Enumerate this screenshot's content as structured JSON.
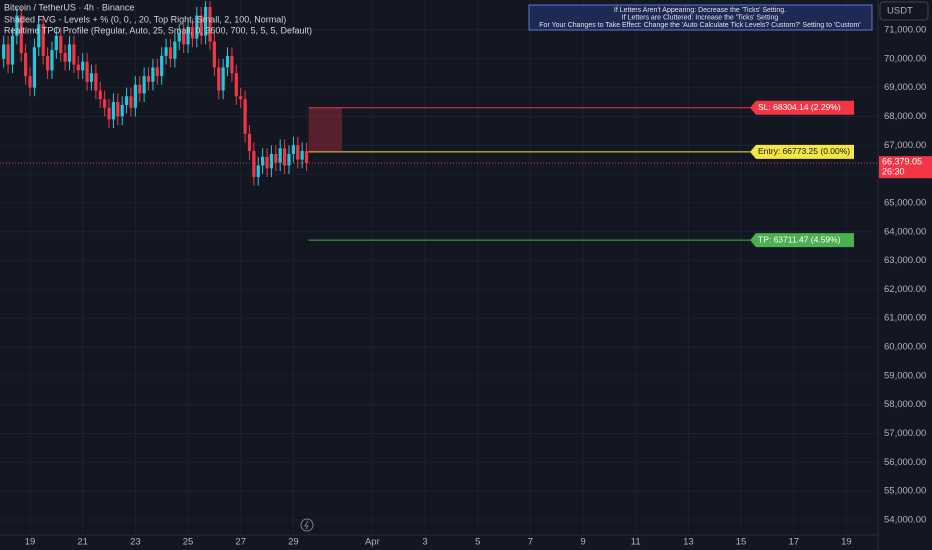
{
  "chart_data": {
    "type": "candlestick",
    "title": "Bitcoin / TetherUS · 4h · Binance",
    "indicators": [
      "Shaded FVG - Levels + % (0, 0, , 20, Top Right, Small, 2, 100, Normal)",
      "Realtime TPO Profile (Regular, Auto, 25, Small, 0, 3600, 700, 5, 5, 5, Default)"
    ],
    "currency": "USDT",
    "notice": [
      "If Letters Aren't Appearing: Decrease the 'Ticks' Setting.",
      "If Letters are Cluttered: Increase the 'Ticks' Setting",
      "For Your Changes to Take Effect: Change the 'Auto Calculate Tick Levels? Custom?' Setting to 'Custom'"
    ],
    "up_color": "#26c6da",
    "down_color": "#f23645",
    "x": [
      18,
      18.167,
      18.333,
      18.5,
      18.667,
      18.833,
      19,
      19.167,
      19.333,
      19.5,
      19.667,
      19.833,
      20,
      20.167,
      20.333,
      20.5,
      20.667,
      20.833,
      21,
      21.167,
      21.333,
      21.5,
      21.667,
      21.833,
      22,
      22.167,
      22.333,
      22.5,
      22.667,
      22.833,
      23,
      23.167,
      23.333,
      23.5,
      23.667,
      23.833,
      24,
      24.167,
      24.333,
      24.5,
      24.667,
      24.833,
      25,
      25.167,
      25.333,
      25.5,
      25.667,
      25.833,
      26,
      26.167,
      26.333,
      26.5,
      26.667,
      26.833,
      27,
      27.167,
      27.333,
      27.5,
      27.667,
      27.833,
      28,
      28.167,
      28.333,
      28.5,
      28.667,
      28.833,
      29,
      29.167,
      29.333,
      29.5
    ],
    "open": [
      70000,
      70500,
      69800,
      70800,
      71500,
      70200,
      69400,
      69000,
      70400,
      71200,
      70100,
      69600,
      70300,
      70800,
      70200,
      69900,
      70500,
      69800,
      69600,
      69900,
      69200,
      69500,
      68900,
      68600,
      68300,
      67900,
      68500,
      68000,
      68400,
      68700,
      68300,
      69100,
      68800,
      69400,
      69200,
      69700,
      69400,
      70100,
      70400,
      70000,
      70600,
      70900,
      70500,
      71100,
      70700,
      71500,
      70800,
      71800,
      70600,
      69700,
      68900,
      69700,
      70100,
      69500,
      68700,
      68600,
      67400,
      66800,
      65900,
      66300,
      66600,
      66200,
      66700,
      66400,
      66900,
      66300,
      66700,
      67000,
      66500,
      66800
    ],
    "high": [
      70800,
      70800,
      71100,
      71800,
      71800,
      70500,
      69700,
      70700,
      71500,
      71500,
      70400,
      70600,
      71100,
      71100,
      70500,
      70800,
      70800,
      70100,
      70200,
      70200,
      69800,
      69800,
      69200,
      68900,
      68600,
      68800,
      68800,
      68700,
      69000,
      69000,
      69400,
      69400,
      69700,
      69700,
      70000,
      70000,
      70400,
      70700,
      70700,
      70900,
      71200,
      71200,
      71400,
      71400,
      71800,
      71800,
      72000,
      72000,
      70900,
      70000,
      70000,
      70400,
      70400,
      69800,
      69000,
      68900,
      67700,
      67100,
      66600,
      66900,
      66900,
      67000,
      67000,
      67200,
      67200,
      67000,
      67300,
      67300,
      67100,
      67100
    ],
    "low": [
      69700,
      69500,
      69500,
      70500,
      69900,
      69100,
      68700,
      68700,
      70100,
      69800,
      69300,
      69300,
      70000,
      69900,
      69600,
      69600,
      69500,
      69300,
      69300,
      68900,
      68900,
      68600,
      68300,
      68000,
      67600,
      67600,
      67700,
      67700,
      68100,
      68000,
      68000,
      68500,
      68500,
      68900,
      68900,
      69100,
      69100,
      69800,
      69700,
      69700,
      70300,
      70200,
      70200,
      70400,
      70400,
      70500,
      70500,
      70300,
      69400,
      68600,
      68600,
      69400,
      69200,
      68400,
      68300,
      67100,
      66500,
      65600,
      65600,
      66000,
      65900,
      65900,
      66100,
      66100,
      66000,
      66000,
      66400,
      66200,
      66200,
      66100
    ],
    "close": [
      70500,
      69800,
      70800,
      71500,
      70200,
      69400,
      69000,
      70400,
      71200,
      70100,
      69600,
      70300,
      70800,
      70200,
      69900,
      70500,
      69800,
      69600,
      69900,
      69200,
      69500,
      68900,
      68600,
      68300,
      67900,
      68500,
      68000,
      68400,
      68700,
      68300,
      69100,
      68800,
      69400,
      69200,
      69700,
      69400,
      70100,
      70400,
      70000,
      70600,
      70900,
      70500,
      71100,
      70700,
      71500,
      70800,
      71800,
      70600,
      69700,
      68900,
      69700,
      70100,
      69500,
      68700,
      68600,
      67400,
      66800,
      65900,
      66300,
      66600,
      66200,
      66700,
      66400,
      66900,
      66300,
      66700,
      67000,
      66500,
      66800,
      66379
    ],
    "xlim": [
      17.86,
      51.2
    ],
    "xticks": [
      19,
      21,
      23,
      25,
      27,
      29,
      {
        "value": 32,
        "label": "Apr"
      },
      {
        "value": 34,
        "label": "3"
      },
      {
        "value": 36,
        "label": "5"
      },
      {
        "value": 38,
        "label": "7"
      },
      {
        "value": 40,
        "label": "9"
      },
      {
        "value": 42,
        "label": "11"
      },
      {
        "value": 44,
        "label": "13"
      },
      {
        "value": 46,
        "label": "15"
      },
      {
        "value": 48,
        "label": "17"
      },
      {
        "value": 50,
        "label": "19"
      }
    ],
    "ylim": [
      53480,
      72040
    ],
    "yticks": [
      {
        "value": 54000,
        "label": "54,000.00"
      },
      {
        "value": 55000,
        "label": "55,000.00"
      },
      {
        "value": 56000,
        "label": "56,000.00"
      },
      {
        "value": 57000,
        "label": "57,000.00"
      },
      {
        "value": 58000,
        "label": "58,000.00"
      },
      {
        "value": 59000,
        "label": "59,000.00"
      },
      {
        "value": 60000,
        "label": "60,000.00"
      },
      {
        "value": 61000,
        "label": "61,000.00"
      },
      {
        "value": 62000,
        "label": "62,000.00"
      },
      {
        "value": 63000,
        "label": "63,000.00"
      },
      {
        "value": 64000,
        "label": "64,000.00"
      },
      {
        "value": 65000,
        "label": "65,000.00"
      },
      {
        "value": 66000,
        "label": "66,000.00"
      },
      {
        "value": 67000,
        "label": "67,000.00"
      },
      {
        "value": 68000,
        "label": "68,000.00"
      },
      {
        "value": 69000,
        "label": "69,000.00"
      },
      {
        "value": 70000,
        "label": "70,000.00"
      },
      {
        "value": 71000,
        "label": "71,000.00"
      }
    ],
    "levels": [
      {
        "value": 68304.14,
        "label": "SL: 68304.14 (2.29%)",
        "color": "#f23645"
      },
      {
        "value": 66773.25,
        "label": "Entry: 66773.25 (0.00%)",
        "color": "#f5e642"
      },
      {
        "value": 63711.47,
        "label": "TP: 63711.47 (4.59%)",
        "color": "#4caf50"
      }
    ],
    "last_price": {
      "value": 66379.05,
      "label": "66,379.05",
      "countdown": "26:30",
      "color": "#f23645"
    }
  }
}
